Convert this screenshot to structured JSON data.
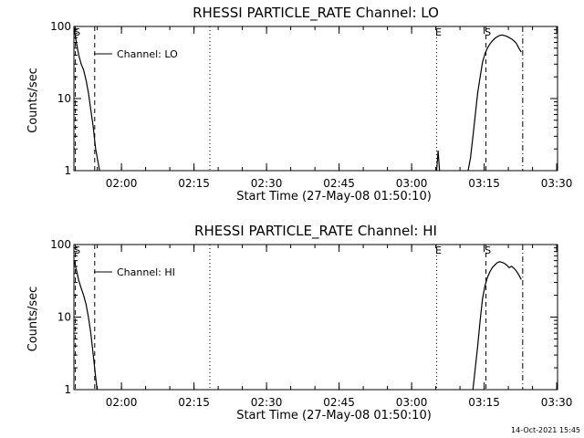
{
  "footer": {
    "timestamp": "14-Oct-2021 15:45"
  },
  "chart_data": [
    {
      "type": "line",
      "title": "RHESSI PARTICLE_RATE Channel: LO",
      "xlabel": "Start Time (27-May-08 01:50:10)",
      "ylabel": "Counts/sec",
      "yscale": "log",
      "ylim": [
        1,
        100
      ],
      "xlim_minutes": [
        0,
        100
      ],
      "x_ticks": [
        {
          "t": 9.83,
          "label": "02:00"
        },
        {
          "t": 24.83,
          "label": "02:15"
        },
        {
          "t": 39.83,
          "label": "02:30"
        },
        {
          "t": 54.83,
          "label": "02:45"
        },
        {
          "t": 69.83,
          "label": "03:00"
        },
        {
          "t": 84.83,
          "label": "03:15"
        },
        {
          "t": 99.83,
          "label": "03:30"
        }
      ],
      "y_ticks": [
        {
          "v": 1,
          "label": "1"
        },
        {
          "v": 10,
          "label": "10"
        },
        {
          "v": 100,
          "label": "100"
        }
      ],
      "legend": "Channel: LO",
      "series": [
        {
          "name": "Channel: LO",
          "segments": [
            [
              [
                0,
                100
              ],
              [
                0.5,
                60
              ],
              [
                1.0,
                40
              ],
              [
                1.5,
                30
              ],
              [
                2.0,
                25
              ],
              [
                2.5,
                18
              ],
              [
                3.0,
                12
              ],
              [
                3.5,
                7
              ],
              [
                4.0,
                4
              ],
              [
                4.5,
                2
              ],
              [
                5.0,
                1.3
              ],
              [
                5.3,
                1
              ]
            ],
            [
              [
                75.0,
                1
              ],
              [
                75.3,
                1.9
              ],
              [
                75.6,
                1
              ]
            ],
            [
              [
                81.5,
                1
              ],
              [
                82.0,
                1.5
              ],
              [
                82.5,
                3
              ],
              [
                83.0,
                6
              ],
              [
                83.5,
                12
              ],
              [
                84.0,
                20
              ],
              [
                84.5,
                32
              ],
              [
                85.0,
                42
              ],
              [
                85.5,
                50
              ],
              [
                86.0,
                57
              ],
              [
                86.5,
                63
              ],
              [
                87.0,
                68
              ],
              [
                87.5,
                72
              ],
              [
                88.0,
                75
              ],
              [
                88.5,
                76
              ],
              [
                89.0,
                75
              ],
              [
                89.5,
                73
              ],
              [
                90.0,
                70
              ],
              [
                90.5,
                67
              ],
              [
                91.0,
                63
              ],
              [
                91.5,
                58
              ],
              [
                92.0,
                50
              ],
              [
                92.5,
                44
              ]
            ]
          ]
        }
      ],
      "markers": [
        {
          "t": 0.3,
          "style": "dashed",
          "label": "S"
        },
        {
          "t": 4.3,
          "style": "dashed",
          "label": ""
        },
        {
          "t": 28.1,
          "style": "dotted",
          "label": ""
        },
        {
          "t": 75.0,
          "style": "dotted",
          "label": "E"
        },
        {
          "t": 85.2,
          "style": "dashed",
          "label": "S"
        },
        {
          "t": 92.8,
          "style": "dashdot",
          "label": ""
        }
      ]
    },
    {
      "type": "line",
      "title": "RHESSI PARTICLE_RATE Channel: HI",
      "xlabel": "Start Time (27-May-08 01:50:10)",
      "ylabel": "Counts/sec",
      "yscale": "log",
      "ylim": [
        1,
        100
      ],
      "xlim_minutes": [
        0,
        100
      ],
      "x_ticks": [
        {
          "t": 9.83,
          "label": "02:00"
        },
        {
          "t": 24.83,
          "label": "02:15"
        },
        {
          "t": 39.83,
          "label": "02:30"
        },
        {
          "t": 54.83,
          "label": "02:45"
        },
        {
          "t": 69.83,
          "label": "03:00"
        },
        {
          "t": 84.83,
          "label": "03:15"
        },
        {
          "t": 99.83,
          "label": "03:30"
        }
      ],
      "y_ticks": [
        {
          "v": 1,
          "label": "1"
        },
        {
          "v": 10,
          "label": "10"
        },
        {
          "v": 100,
          "label": "100"
        }
      ],
      "legend": "Channel: HI",
      "series": [
        {
          "name": "Channel: HI",
          "segments": [
            [
              [
                0,
                60
              ],
              [
                0.5,
                45
              ],
              [
                1.0,
                32
              ],
              [
                1.5,
                25
              ],
              [
                2.0,
                20
              ],
              [
                2.5,
                15
              ],
              [
                3.0,
                10
              ],
              [
                3.5,
                6
              ],
              [
                4.0,
                3
              ],
              [
                4.5,
                1.5
              ],
              [
                4.8,
                1
              ]
            ],
            [
              [
                82.5,
                1
              ],
              [
                83.0,
                2
              ],
              [
                83.5,
                4
              ],
              [
                84.0,
                9
              ],
              [
                84.5,
                18
              ],
              [
                85.0,
                27
              ],
              [
                85.5,
                35
              ],
              [
                86.0,
                42
              ],
              [
                86.5,
                48
              ],
              [
                87.0,
                52
              ],
              [
                87.5,
                56
              ],
              [
                88.0,
                58
              ],
              [
                88.5,
                57
              ],
              [
                89.0,
                55
              ],
              [
                89.5,
                52
              ],
              [
                90.0,
                48
              ],
              [
                90.5,
                50
              ],
              [
                91.0,
                47
              ],
              [
                91.5,
                43
              ],
              [
                92.0,
                38
              ],
              [
                92.5,
                33
              ]
            ]
          ]
        }
      ],
      "markers": [
        {
          "t": 0.3,
          "style": "dashed",
          "label": "S"
        },
        {
          "t": 4.3,
          "style": "dashed",
          "label": ""
        },
        {
          "t": 28.1,
          "style": "dotted",
          "label": ""
        },
        {
          "t": 75.0,
          "style": "dotted",
          "label": "E"
        },
        {
          "t": 85.2,
          "style": "dashed",
          "label": "S"
        },
        {
          "t": 92.8,
          "style": "dashdot",
          "label": ""
        }
      ]
    }
  ]
}
